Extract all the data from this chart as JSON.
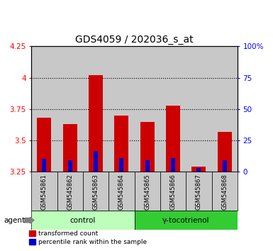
{
  "title": "GDS4059 / 202036_s_at",
  "samples": [
    "GSM545861",
    "GSM545862",
    "GSM545863",
    "GSM545864",
    "GSM545865",
    "GSM545866",
    "GSM545867",
    "GSM545868"
  ],
  "red_values": [
    3.68,
    3.63,
    4.02,
    3.7,
    3.65,
    3.78,
    3.29,
    3.57
  ],
  "blue_values": [
    3.355,
    3.345,
    3.415,
    3.36,
    3.345,
    3.36,
    3.28,
    3.345
  ],
  "baseline": 3.25,
  "ylim_left": [
    3.25,
    4.25
  ],
  "ylim_right": [
    0,
    100
  ],
  "yticks_left": [
    3.25,
    3.5,
    3.75,
    4.0,
    4.25
  ],
  "yticks_right": [
    0,
    25,
    50,
    75,
    100
  ],
  "ytick_labels_left": [
    "3.25",
    "3.5",
    "3.75",
    "4",
    "4.25"
  ],
  "ytick_labels_right": [
    "0",
    "25",
    "50",
    "75",
    "100%"
  ],
  "groups": [
    {
      "label": "control",
      "indices": [
        0,
        1,
        2,
        3
      ],
      "color": "#bbffbb"
    },
    {
      "label": "γ-tocotrienol",
      "indices": [
        4,
        5,
        6,
        7
      ],
      "color": "#33cc33"
    }
  ],
  "agent_label": "agent",
  "bar_width": 0.55,
  "red_color": "#cc0000",
  "blue_color": "#0000cc",
  "background_color": "#ffffff",
  "col_bg_color": "#c8c8c8",
  "legend_red": "transformed count",
  "legend_blue": "percentile rank within the sample",
  "title_fontsize": 10,
  "tick_fontsize": 7.5,
  "sample_fontsize": 6.0
}
